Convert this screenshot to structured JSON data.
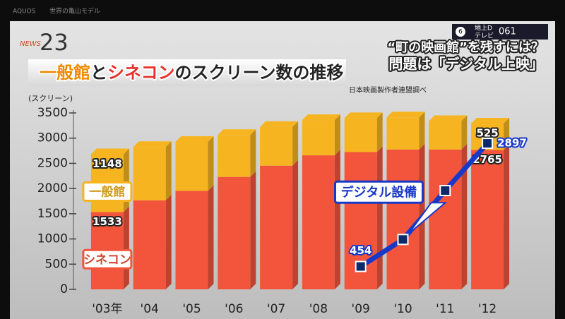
{
  "screen": {
    "brand": "AQUOS",
    "program": "世界の亀山モデル",
    "logo_news": "NEWS",
    "logo_number": "23",
    "headline": "“町の映画館”を残すには？",
    "subheadline": "問題は「デジタル上映」",
    "channel_number": "6",
    "channel_type": "地上D",
    "channel_kind": "テレビ",
    "channel_code": "061"
  },
  "chart_data": {
    "type": "bar",
    "title": [
      {
        "text": "一般館",
        "color": "#f08a00"
      },
      {
        "text": "と",
        "color": "#222222"
      },
      {
        "text": "シネコン",
        "color": "#e8302a"
      },
      {
        "text": "のスクリーン数の推移",
        "color": "#222222"
      }
    ],
    "source": "日本映画製作者連盟調べ",
    "y_axis_label": "(スクリーン)",
    "categories": [
      "'03年",
      "'04",
      "'05",
      "'06",
      "'07",
      "'08",
      "'09",
      "'10",
      "'11",
      "'12"
    ],
    "stacked": true,
    "series": [
      {
        "name": "シネコン",
        "color": "#f2553c",
        "values": [
          1533,
          1766,
          1954,
          2230,
          2454,
          2659,
          2723,
          2774,
          2774,
          2765
        ]
      },
      {
        "name": "一般館",
        "color": "#f6b520",
        "values": [
          1148,
          1059,
          972,
          832,
          767,
          700,
          673,
          638,
          565,
          525
        ]
      },
      {
        "name": "デジタル設備",
        "type": "line",
        "color": "#1838c8",
        "values": [
          null,
          null,
          null,
          null,
          null,
          null,
          454,
          990,
          1960,
          2897
        ]
      }
    ],
    "ylim": [
      0,
      3500
    ],
    "yticks": [
      0,
      500,
      1000,
      1500,
      2000,
      2500,
      3000,
      3500
    ],
    "grid": false
  }
}
